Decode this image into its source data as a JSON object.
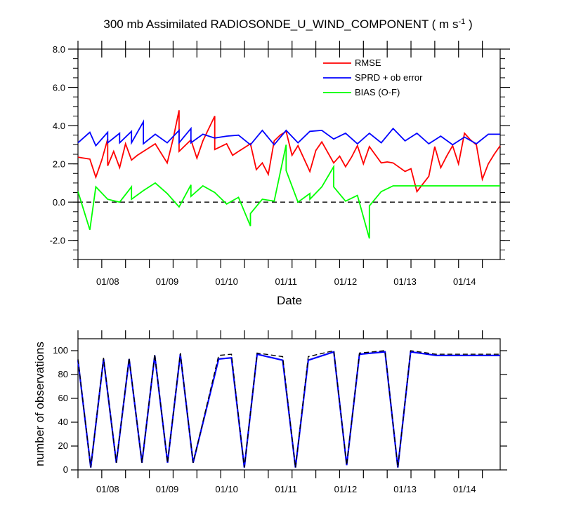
{
  "chart_data": [
    {
      "type": "line",
      "title_main": "300 mb Assimilated RADIOSONDE_U_WIND_COMPONENT ( m s",
      "title_sup": "-1",
      "title_end": " )",
      "xlabel": "Date",
      "ylabel": "",
      "x_tick_labels": [
        "01/08",
        "01/09",
        "01/10",
        "01/11",
        "01/12",
        "01/13",
        "01/14"
      ],
      "ylim": [
        -3.0,
        8.0
      ],
      "y_ticks": [
        -2.0,
        0.0,
        2.0,
        4.0,
        6.0,
        8.0
      ],
      "y_tick_labels": [
        "-2.0",
        "0.0",
        "2.0",
        "4.0",
        "6.0",
        "8.0"
      ],
      "reference_line": 0.0,
      "legend_position": "top-right",
      "series": [
        {
          "name": "RMSE",
          "color": "#ff0000",
          "x": [
            7.0,
            7.25,
            7.5,
            7.75,
            7.75,
            8.0,
            8.25,
            8.25,
            8.5,
            8.75,
            8.75,
            9.0,
            9.25,
            9.25,
            9.5,
            9.75,
            9.75,
            10.0,
            10.25,
            10.75,
            10.75,
            11.0,
            11.25,
            11.25,
            11.75,
            12.0,
            12.25,
            12.25,
            12.75,
            12.75,
            13.0,
            13.25,
            13.25,
            13.5,
            13.75,
            13.75,
            14.0,
            14.25,
            14.25,
            14.5,
            14.75,
            14.75,
            15.0,
            15.25,
            15.5,
            15.75,
            15.75,
            16.0,
            16.25,
            16.25,
            16.75,
            16.75,
            17.0,
            17.25,
            17.25,
            17.75,
            17.75,
            18.0,
            18.25,
            18.5,
            18.5,
            18.75,
            18.75,
            19.0,
            19.25,
            19.25,
            19.75,
            19.75,
            20.0,
            20.25,
            20.75,
            20.75,
            21.0,
            21.25,
            21.25,
            21.75,
            21.75,
            22.0,
            22.25,
            22.25,
            22.5,
            22.75,
            22.75,
            23.0,
            23.25,
            23.25,
            23.5,
            23.75,
            23.75,
            24.0,
            24.25,
            24.25,
            24.5,
            24.75,
            24.75
          ],
          "values": [
            2.35,
            2.3,
            2.25,
            1.3,
            1.3,
            2.2,
            3.3,
            1.9,
            2.65,
            1.8,
            1.8,
            3.05,
            2.2,
            2.2,
            2.45,
            2.65,
            2.65,
            2.85,
            3.05,
            2.05,
            2.05,
            3.3,
            4.8,
            2.65,
            3.25,
            2.3,
            3.2,
            3.2,
            4.5,
            2.75,
            2.9,
            3.05,
            3.05,
            2.45,
            2.65,
            2.65,
            2.85,
            3.05,
            3.05,
            1.7,
            2.05,
            2.05,
            1.45,
            3.2,
            3.5,
            3.7,
            3.7,
            2.45,
            2.95,
            2.95,
            1.6,
            1.6,
            2.7,
            3.15,
            3.15,
            2.05,
            2.05,
            2.4,
            1.85,
            2.35,
            2.35,
            2.95,
            2.95,
            2.0,
            2.9,
            2.9,
            2.05,
            2.05,
            2.1,
            2.05,
            1.6,
            1.6,
            1.75,
            0.55,
            0.55,
            1.35,
            1.35,
            2.9,
            1.8,
            1.8,
            2.4,
            2.95,
            2.95,
            2.0,
            3.6,
            3.6,
            3.25,
            3.0,
            3.0,
            1.2,
            2.0,
            2.0,
            2.5,
            2.95,
            2.95
          ]
        },
        {
          "name": "SPRD + ob error",
          "color": "#0000ff",
          "x": [
            7.0,
            7.5,
            7.75,
            8.25,
            8.25,
            8.75,
            8.75,
            9.25,
            9.25,
            9.75,
            9.75,
            10.25,
            10.75,
            10.75,
            11.25,
            11.25,
            11.75,
            11.75,
            12.25,
            12.75,
            12.75,
            13.25,
            13.25,
            13.75,
            13.75,
            14.25,
            14.25,
            14.75,
            14.75,
            15.25,
            15.75,
            15.75,
            16.25,
            16.25,
            16.75,
            16.75,
            17.25,
            17.25,
            17.75,
            17.75,
            18.25,
            18.25,
            18.75,
            18.75,
            19.25,
            19.25,
            19.75,
            19.75,
            20.25,
            20.75,
            20.75,
            21.25,
            21.25,
            21.75,
            21.75,
            22.25,
            22.25,
            22.75,
            22.75,
            23.25,
            23.25,
            23.75,
            23.75,
            24.25,
            24.25,
            24.75
          ],
          "values": [
            3.1,
            3.65,
            2.95,
            3.65,
            3.1,
            3.6,
            3.1,
            3.7,
            3.1,
            4.2,
            3.05,
            3.55,
            3.1,
            3.1,
            3.75,
            3.1,
            3.85,
            3.1,
            3.55,
            3.35,
            3.35,
            3.45,
            3.45,
            3.5,
            3.5,
            3.0,
            3.0,
            3.75,
            3.75,
            3.0,
            3.75,
            3.75,
            3.1,
            3.1,
            3.7,
            3.7,
            3.75,
            3.75,
            3.3,
            3.3,
            3.6,
            3.6,
            3.05,
            3.05,
            3.6,
            3.6,
            3.1,
            3.1,
            3.85,
            3.2,
            3.2,
            3.6,
            3.6,
            3.05,
            3.05,
            3.45,
            3.45,
            3.0,
            3.0,
            3.4,
            3.4,
            3.05,
            3.05,
            3.55,
            3.55,
            3.55
          ]
        },
        {
          "name": "BIAS (O-F)",
          "color": "#00ff00",
          "x": [
            7.0,
            7.5,
            7.75,
            8.25,
            8.25,
            8.75,
            8.75,
            9.25,
            9.25,
            9.75,
            9.75,
            10.25,
            10.25,
            10.75,
            10.75,
            11.25,
            11.25,
            11.75,
            11.75,
            12.25,
            12.75,
            12.75,
            13.25,
            13.25,
            13.75,
            13.75,
            14.25,
            14.25,
            14.75,
            14.75,
            15.25,
            15.75,
            15.75,
            16.25,
            16.25,
            16.75,
            16.75,
            17.25,
            17.25,
            17.75,
            17.75,
            18.25,
            18.25,
            18.75,
            18.75,
            19.25,
            19.25,
            19.75,
            19.75,
            20.25,
            20.75,
            20.75,
            21.25,
            21.25,
            21.75,
            21.75,
            22.25,
            22.25,
            22.75,
            22.75,
            23.25,
            23.25,
            23.75,
            23.75,
            24.25,
            24.25,
            24.75
          ],
          "values": [
            0.55,
            -1.45,
            0.8,
            0.15,
            0.15,
            0.0,
            0.0,
            0.8,
            0.15,
            0.6,
            0.6,
            1.0,
            1.0,
            0.45,
            0.45,
            -0.25,
            -0.25,
            0.9,
            0.3,
            0.85,
            0.5,
            0.5,
            -0.1,
            -0.1,
            0.25,
            0.25,
            -1.25,
            -0.6,
            0.15,
            0.15,
            0.05,
            3.0,
            1.65,
            0.0,
            0.0,
            0.45,
            0.15,
            0.8,
            0.8,
            1.85,
            0.8,
            0.05,
            0.05,
            0.35,
            0.35,
            -1.9,
            -0.2,
            0.55,
            0.55,
            0.85,
            0.85,
            0.85,
            0.85,
            0.85,
            0.85,
            0.85,
            0.85,
            0.85,
            0.85,
            0.85,
            0.85,
            0.85,
            0.85,
            0.85,
            0.85,
            0.85,
            0.85
          ]
        }
      ]
    },
    {
      "type": "line",
      "title": "",
      "xlabel": "",
      "ylabel": "number of observations",
      "x_tick_labels": [
        "01/08",
        "01/09",
        "01/10",
        "01/11",
        "01/12",
        "01/13",
        "01/14"
      ],
      "ylim": [
        0,
        110
      ],
      "y_ticks": [
        0,
        20,
        40,
        60,
        80,
        100
      ],
      "y_tick_labels": [
        "0",
        "20",
        "40",
        "60",
        "80",
        "100"
      ],
      "series": [
        {
          "color": "#0000ff",
          "x": [
            7.0,
            7.5,
            8.0,
            8.5,
            9.0,
            9.5,
            10.0,
            10.5,
            11.0,
            11.5,
            12.5,
            13.0,
            13.5,
            14.0,
            15.0,
            15.5,
            16.0,
            17.0,
            17.5,
            18.0,
            19.0,
            19.5,
            20.0,
            21.0,
            21.5,
            22.0,
            23.0,
            23.5
          ],
          "values": [
            92,
            2,
            93,
            6,
            93,
            6,
            96,
            6,
            97,
            6,
            93,
            94,
            2,
            97,
            92,
            2,
            92,
            99,
            4,
            97,
            99,
            2,
            99,
            96,
            96,
            96,
            96,
            96
          ]
        },
        {
          "color": "#000000",
          "dash": true,
          "x": [
            7.0,
            7.5,
            8.0,
            8.5,
            9.0,
            9.5,
            10.0,
            10.5,
            11.0,
            11.5,
            12.5,
            13.0,
            13.5,
            14.0,
            15.0,
            15.5,
            16.0,
            17.0,
            17.5,
            18.0,
            19.0,
            19.5,
            20.0,
            21.0,
            21.5,
            22.0,
            23.0,
            23.5
          ],
          "values": [
            93,
            2,
            94,
            6,
            94,
            6,
            97,
            6,
            98,
            6,
            96,
            97,
            2,
            98,
            95,
            2,
            95,
            100,
            4,
            98,
            100,
            2,
            100,
            97,
            97,
            97,
            97,
            97
          ]
        }
      ]
    }
  ]
}
